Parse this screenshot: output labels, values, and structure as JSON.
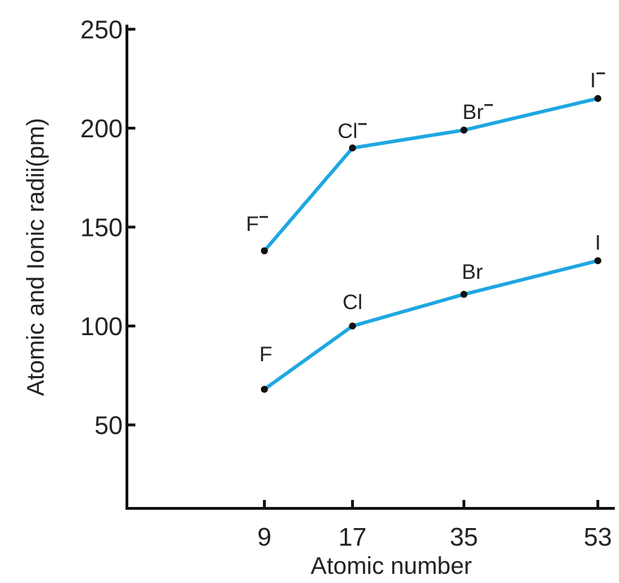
{
  "chart_data": {
    "type": "line",
    "xlabel": "Atomic number",
    "ylabel": "Atomic and Ionic radii(pm)",
    "x": [
      9,
      17,
      35,
      53
    ],
    "x_tick_labels": [
      "9",
      "17",
      "35",
      "53"
    ],
    "y_ticks": [
      50,
      100,
      150,
      200,
      250
    ],
    "ylim": [
      15,
      250
    ],
    "series": [
      {
        "key": "ionic",
        "values": [
          138,
          190,
          199,
          215
        ],
        "labels": [
          "F",
          "Cl",
          "Br",
          "I"
        ],
        "label_suffix": "−",
        "color": "#1ea7e1"
      },
      {
        "key": "atomic",
        "values": [
          68,
          100,
          116,
          133
        ],
        "labels": [
          "F",
          "Cl",
          "Br",
          "I"
        ],
        "label_suffix": "",
        "color": "#1ea7e1"
      }
    ]
  }
}
